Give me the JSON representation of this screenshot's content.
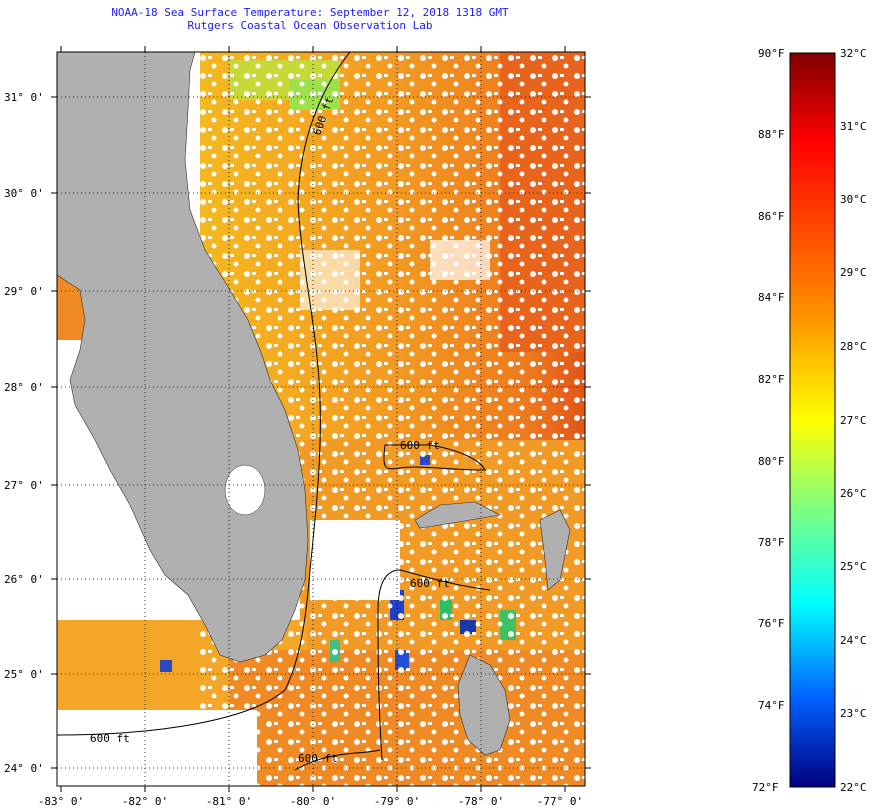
{
  "title": "NOAA-18 Sea Surface Temperature:  September 12, 2018 1318 GMT",
  "subtitle": "Rutgers Coastal Ocean Observation Lab",
  "lat_ticks": [
    "31° 0'",
    "30° 0'",
    "29° 0'",
    "28° 0'",
    "27° 0'",
    "26° 0'",
    "25° 0'",
    "24° 0'"
  ],
  "lon_ticks": [
    "-83° 0'",
    "-82° 0'",
    "-81° 0'",
    "-80° 0'",
    "-79° 0'",
    "-78° 0'",
    "-77° 0'"
  ],
  "isobath_labels": [
    "600 ft",
    "600 ft",
    "600 ft",
    "600 ft",
    "600 ft"
  ],
  "colorbar": {
    "fahrenheit": [
      "90°F",
      "88°F",
      "86°F",
      "84°F",
      "82°F",
      "80°F",
      "78°F",
      "76°F",
      "74°F",
      "72°F"
    ],
    "celsius": [
      "32°C",
      "31°C",
      "30°C",
      "29°C",
      "28°C",
      "27°C",
      "26°C",
      "25°C",
      "24°C",
      "23°C",
      "22°C"
    ]
  },
  "colors": {
    "land": "#b0b0b0",
    "title": "#1a1aff",
    "water_warm": "#f0a020",
    "water_hot": "#e85018"
  }
}
